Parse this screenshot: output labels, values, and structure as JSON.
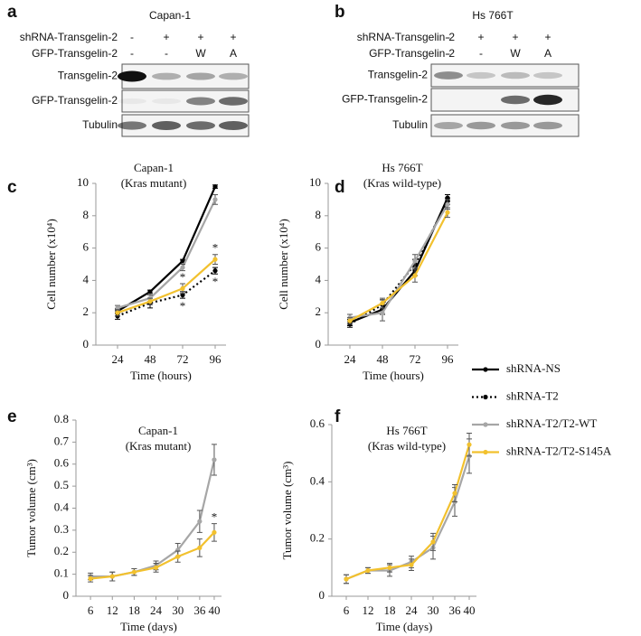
{
  "blots": [
    {
      "panel_label": "a",
      "title": "Capan-1",
      "conditions": [
        {
          "label": "shRNA-Transgelin-2",
          "values": [
            "-",
            "+",
            "+",
            "+"
          ]
        },
        {
          "label": "GFP-Transgelin-2",
          "values": [
            "-",
            "-",
            "W",
            "A"
          ]
        }
      ],
      "rows": [
        "Transgelin-2",
        "GFP-Transgelin-2",
        "Tubulin"
      ]
    },
    {
      "panel_label": "b",
      "title": "Hs 766T",
      "conditions": [
        {
          "label": "shRNA-Transgelin-2",
          "values": [
            "-",
            "+",
            "+",
            "+"
          ]
        },
        {
          "label": "GFP-Transgelin-2",
          "values": [
            "-",
            "-",
            "W",
            "A"
          ]
        }
      ],
      "rows": [
        "Transgelin-2",
        "GFP-Transgelin-2",
        "Tubulin"
      ]
    }
  ],
  "chart_data": [
    {
      "type": "line",
      "panel_label": "c",
      "title": "Capan-1",
      "subtitle": "(Kras mutant)",
      "x_label": "Time (hours)",
      "y_label": "Cell number (x10⁴)",
      "x": [
        24,
        48,
        72,
        96
      ],
      "xlim": [
        8,
        104
      ],
      "xticks": [
        24,
        48,
        72,
        96
      ],
      "ylim": [
        0,
        10
      ],
      "yticks": [
        0,
        2,
        4,
        6,
        8,
        10
      ],
      "series": [
        {
          "name": "shRNA-NS",
          "color": "#000000",
          "line_style": "solid",
          "values": [
            2.1,
            3.3,
            5.2,
            9.8
          ],
          "errors": [
            0.15,
            0.1,
            0.1,
            0.1
          ]
        },
        {
          "name": "shRNA-T2",
          "color": "#000000",
          "line_style": "dotted",
          "values": [
            1.8,
            2.6,
            3.1,
            4.6
          ],
          "errors": [
            0.2,
            0.3,
            0.2,
            0.2
          ],
          "significance": [
            null,
            null,
            "*",
            "*"
          ]
        },
        {
          "name": "shRNA-T2/T2-WT",
          "color": "#a6a6a6",
          "line_style": "solid",
          "values": [
            2.3,
            2.9,
            4.8,
            9.0
          ],
          "errors": [
            0.15,
            0.2,
            0.2,
            0.3
          ]
        },
        {
          "name": "shRNA-T2/T2-S145A",
          "color": "#f2c12e",
          "line_style": "solid",
          "values": [
            2.0,
            2.7,
            3.5,
            5.3
          ],
          "errors": [
            0.2,
            0.2,
            0.3,
            0.3
          ],
          "significance": [
            null,
            null,
            "*",
            "*"
          ]
        }
      ]
    },
    {
      "type": "line",
      "panel_label": "d",
      "title": "Hs 766T",
      "subtitle": "(Kras wild-type)",
      "x_label": "Time (hours)",
      "y_label": "Cell number (x10⁴)",
      "x": [
        24,
        48,
        72,
        96
      ],
      "xlim": [
        8,
        104
      ],
      "xticks": [
        24,
        48,
        72,
        96
      ],
      "ylim": [
        0,
        10
      ],
      "yticks": [
        0,
        2,
        4,
        6,
        8,
        10
      ],
      "series": [
        {
          "name": "shRNA-NS",
          "color": "#000000",
          "line_style": "solid",
          "values": [
            1.4,
            2.2,
            4.6,
            9.1
          ],
          "errors": [
            0.2,
            0.3,
            0.3,
            0.2
          ]
        },
        {
          "name": "shRNA-T2",
          "color": "#000000",
          "line_style": "dotted",
          "values": [
            1.3,
            2.5,
            5.0,
            8.9
          ],
          "errors": [
            0.2,
            0.3,
            0.3,
            0.2
          ]
        },
        {
          "name": "shRNA-T2/T2-WT",
          "color": "#a6a6a6",
          "line_style": "solid",
          "values": [
            1.7,
            2.0,
            5.2,
            8.7
          ],
          "errors": [
            0.2,
            0.5,
            0.4,
            0.3
          ]
        },
        {
          "name": "shRNA-T2/T2-S145A",
          "color": "#f2c12e",
          "line_style": "solid",
          "values": [
            1.5,
            2.6,
            4.3,
            8.2
          ],
          "errors": [
            0.2,
            0.3,
            0.4,
            0.3
          ]
        }
      ]
    },
    {
      "type": "line",
      "panel_label": "e",
      "title": "Capan-1",
      "subtitle": "(Kras mutant)",
      "x_label": "Time (days)",
      "y_label": "Tumor volume (cm³)",
      "x": [
        6,
        12,
        18,
        24,
        30,
        36,
        40
      ],
      "xlim": [
        2,
        42
      ],
      "xticks": [
        6,
        12,
        18,
        24,
        30,
        36,
        40
      ],
      "ylim": [
        0,
        0.8
      ],
      "yticks": [
        0,
        0.1,
        0.2,
        0.3,
        0.4,
        0.5,
        0.6,
        0.7,
        0.8
      ],
      "series": [
        {
          "name": "shRNA-T2/T2-WT",
          "color": "#a6a6a6",
          "line_style": "solid",
          "values": [
            0.09,
            0.09,
            0.11,
            0.14,
            0.21,
            0.34,
            0.62
          ],
          "errors": [
            0.015,
            0.02,
            0.015,
            0.02,
            0.03,
            0.05,
            0.07
          ]
        },
        {
          "name": "shRNA-T2/T2-S145A",
          "color": "#f2c12e",
          "line_style": "solid",
          "values": [
            0.08,
            0.09,
            0.11,
            0.13,
            0.18,
            0.22,
            0.29
          ],
          "errors": [
            0.015,
            0.02,
            0.015,
            0.02,
            0.025,
            0.04,
            0.04
          ],
          "significance": [
            null,
            null,
            null,
            null,
            null,
            null,
            "*"
          ]
        }
      ]
    },
    {
      "type": "line",
      "panel_label": "f",
      "title": "Hs 766T",
      "subtitle": "(Kras wild-type)",
      "x_label": "Time (days)",
      "y_label": "Tumor volume (cm³)",
      "x": [
        6,
        12,
        18,
        24,
        30,
        36,
        40
      ],
      "xlim": [
        2,
        42
      ],
      "xticks": [
        6,
        12,
        18,
        24,
        30,
        36,
        40
      ],
      "ylim": [
        0,
        0.6
      ],
      "yticks": [
        0,
        0.2,
        0.4,
        0.6
      ],
      "series": [
        {
          "name": "shRNA-T2/T2-WT",
          "color": "#a6a6a6",
          "line_style": "solid",
          "values": [
            0.06,
            0.09,
            0.09,
            0.12,
            0.17,
            0.33,
            0.49
          ],
          "errors": [
            0.015,
            0.01,
            0.02,
            0.02,
            0.04,
            0.05,
            0.06
          ]
        },
        {
          "name": "shRNA-T2/T2-S145A",
          "color": "#f2c12e",
          "line_style": "solid",
          "values": [
            0.06,
            0.09,
            0.1,
            0.11,
            0.19,
            0.36,
            0.53
          ],
          "errors": [
            0.015,
            0.01,
            0.015,
            0.02,
            0.03,
            0.03,
            0.04
          ]
        }
      ]
    }
  ]
}
